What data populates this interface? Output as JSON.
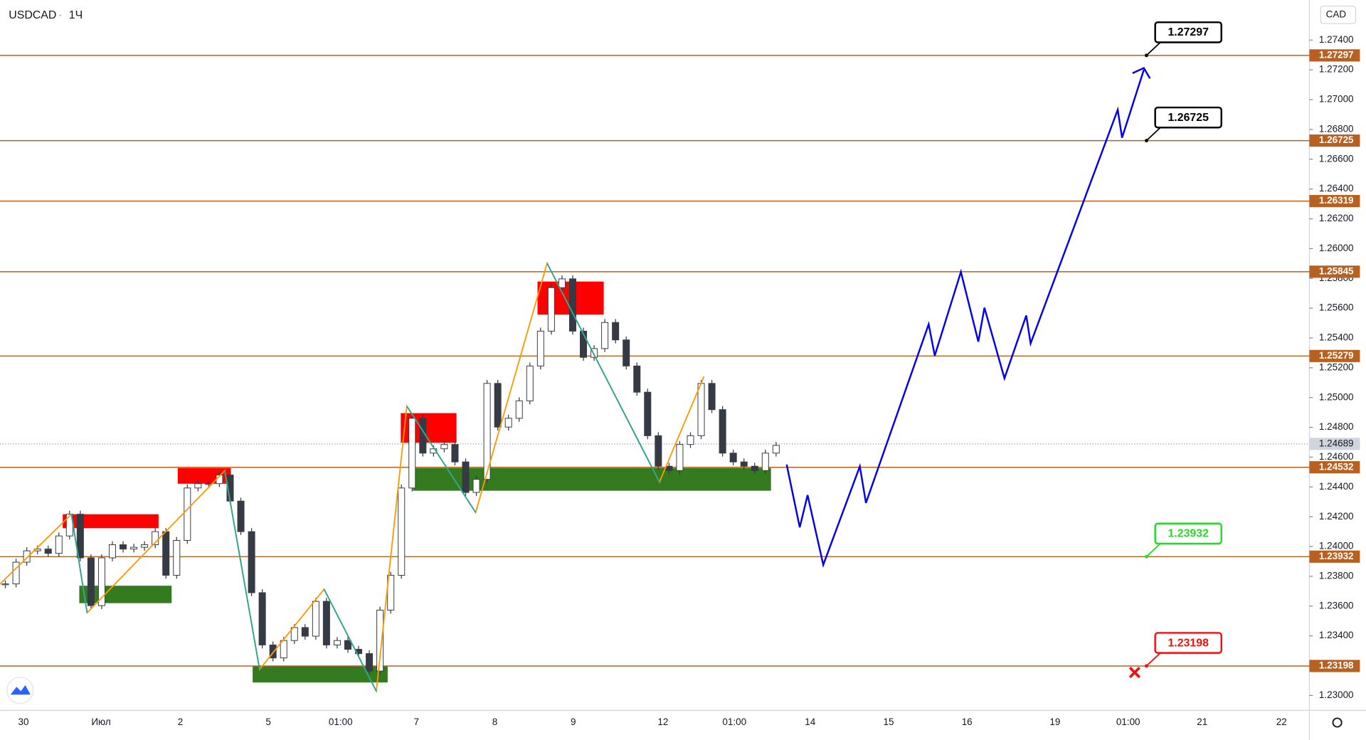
{
  "chart_data": {
    "type": "candlestick",
    "symbol": "USDCAD",
    "interval": "1Ч",
    "currency": "CAD",
    "color": "#363a45",
    "closes": [
      1.23749,
      1.23895,
      1.23971,
      1.23983,
      1.23954,
      1.24071,
      1.24217,
      1.23924,
      1.23603,
      1.23924,
      1.24012,
      1.23983,
      1.23995,
      1.24012,
      1.241,
      1.23807,
      1.24041,
      1.24393,
      1.24422,
      1.24422,
      1.2448,
      1.24305,
      1.241,
      1.2369,
      1.23339,
      1.23252,
      1.23369,
      1.23456,
      1.23398,
      1.23632,
      1.23339,
      1.23369,
      1.2331,
      1.23281,
      1.23164,
      1.23573,
      1.23807,
      1.24393,
      1.24861,
      1.24627,
      1.24656,
      1.24685,
      1.24568,
      1.24363,
      1.24451,
      1.25095,
      1.24802,
      1.24861,
      1.24978,
      1.25212,
      1.25446,
      1.25738,
      1.25797,
      1.25446,
      1.2527,
      1.25329,
      1.25504,
      1.25387,
      1.25212,
      1.25036,
      1.24744,
      1.24539,
      1.2451,
      1.24685,
      1.24744,
      1.25095,
      1.24919,
      1.24627,
      1.24568,
      1.24539,
      1.2451,
      1.24627,
      1.24679
    ],
    "ylim": [
      1.229,
      1.27669
    ],
    "yticks": [
      {
        "value": 1.23,
        "label": "1.23000"
      },
      {
        "value": 1.232,
        "label": "1.23200"
      },
      {
        "value": 1.234,
        "label": "1.23400"
      },
      {
        "value": 1.236,
        "label": "1.23600"
      },
      {
        "value": 1.238,
        "label": "1.23800"
      },
      {
        "value": 1.24,
        "label": "1.24000"
      },
      {
        "value": 1.242,
        "label": "1.24200"
      },
      {
        "value": 1.244,
        "label": "1.24400"
      },
      {
        "value": 1.246,
        "label": "1.24600"
      },
      {
        "value": 1.248,
        "label": "1.24800"
      },
      {
        "value": 1.25,
        "label": "1.25000"
      },
      {
        "value": 1.252,
        "label": "1.25200"
      },
      {
        "value": 1.254,
        "label": "1.25400"
      },
      {
        "value": 1.256,
        "label": "1.25600"
      },
      {
        "value": 1.258,
        "label": "1.25800"
      },
      {
        "value": 1.26,
        "label": "1.26000"
      },
      {
        "value": 1.262,
        "label": "1.26200"
      },
      {
        "value": 1.264,
        "label": "1.26400"
      },
      {
        "value": 1.266,
        "label": "1.26600"
      },
      {
        "value": 1.268,
        "label": "1.26800"
      },
      {
        "value": 1.27,
        "label": "1.27000"
      },
      {
        "value": 1.272,
        "label": "1.27200"
      },
      {
        "value": 1.274,
        "label": "1.27400"
      }
    ],
    "levels": {
      "color": "#b8601f",
      "values": [
        1.27297,
        1.26725,
        1.26319,
        1.25845,
        1.25279,
        1.24532,
        1.23932,
        1.23198
      ]
    },
    "last_price": 1.24689,
    "x_labels": [
      "30",
      "Июл",
      "2",
      "5",
      "01:00",
      "7",
      "8",
      "9",
      "12",
      "01:00",
      "14",
      "15",
      "16",
      "19",
      "01:00",
      "21",
      "22"
    ],
    "callouts": [
      {
        "value": 1.27297,
        "color": "#000000"
      },
      {
        "value": 1.26725,
        "color": "#000000"
      },
      {
        "value": 1.23932,
        "color": "#22dd22"
      },
      {
        "value": 1.23198,
        "color": "#ee1111"
      }
    ]
  }
}
